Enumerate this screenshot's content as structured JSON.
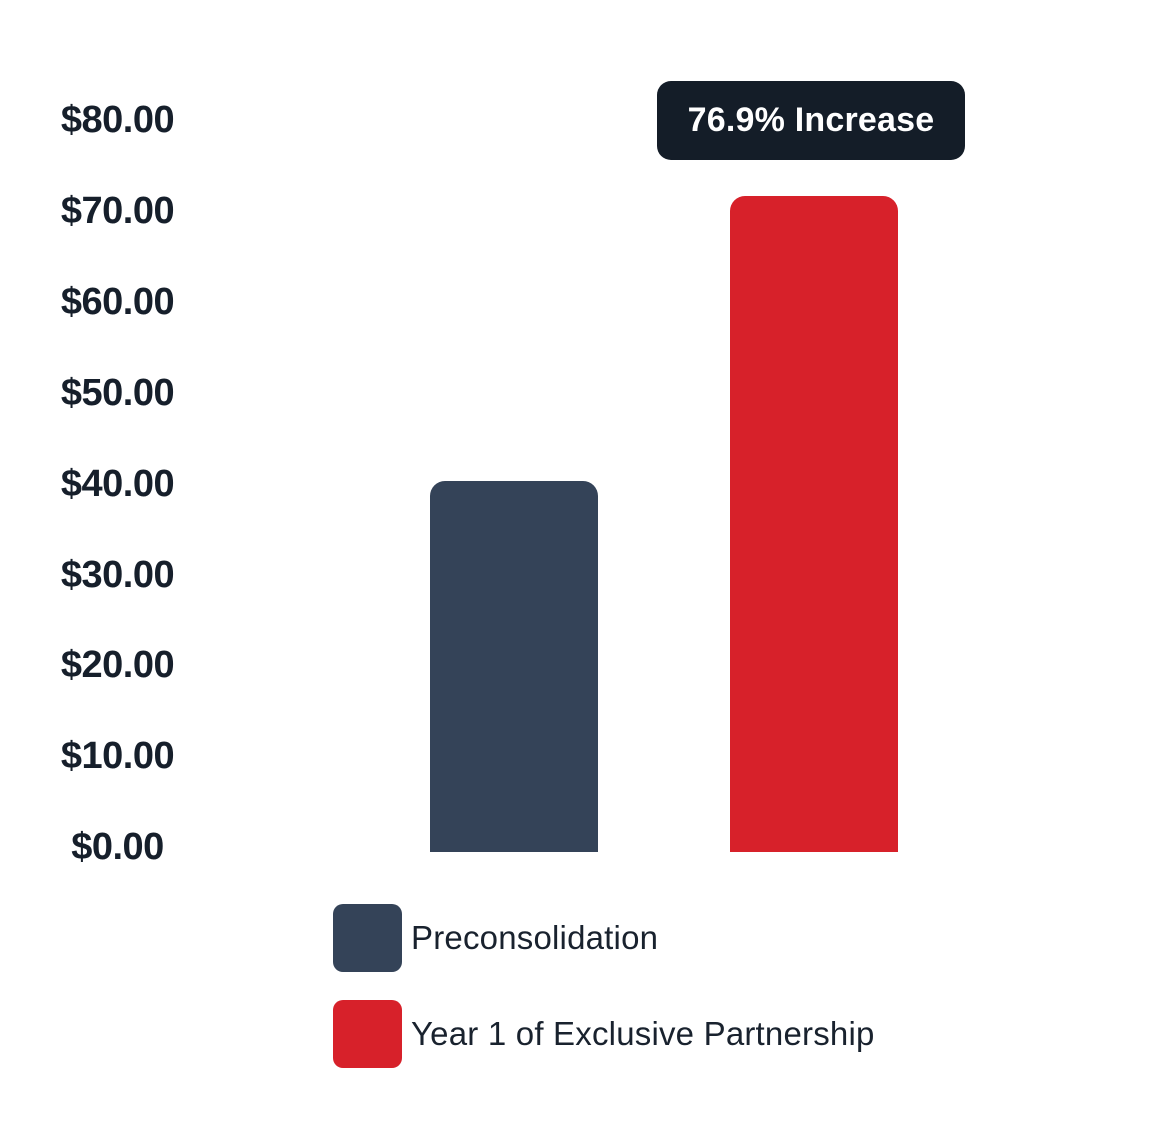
{
  "chart_data": {
    "type": "bar",
    "title": "",
    "xlabel": "",
    "ylabel": "",
    "categories": [
      "Preconsolidation",
      "Year 1 of Exclusive Partnership"
    ],
    "values": [
      40.6,
      71.8
    ],
    "value_unit": "USD dollars",
    "bar_colors": [
      "#344358",
      "#D7212A"
    ],
    "annotation": "76.9% Increase",
    "ytick_labels": [
      "$80.00",
      "$70.00",
      "$60.00",
      "$50.00",
      "$40.00",
      "$30.00",
      "$20.00",
      "$10.00",
      "$0.00"
    ],
    "ytick_values": [
      80,
      70,
      60,
      50,
      40,
      30,
      20,
      10,
      0
    ],
    "ylim": [
      0,
      80
    ],
    "grid": false,
    "axis_lines": false,
    "legend_position": "bottom-left",
    "background": "#FFFFFF"
  },
  "badge": {
    "label": "76.9% Increase",
    "bg_color": "#141D28",
    "text_color": "#FFFFFF"
  },
  "legend": {
    "items": [
      {
        "label": "Preconsolidation",
        "color": "#344358",
        "slug": "preconsolidation"
      },
      {
        "label": "Year 1 of Exclusive Partnership",
        "color": "#D7212A",
        "slug": "year1-exclusive-partnership"
      }
    ]
  },
  "colors": {
    "tick_text": "#161F2B",
    "legend_text": "#19222E",
    "background": "#FFFFFF"
  }
}
